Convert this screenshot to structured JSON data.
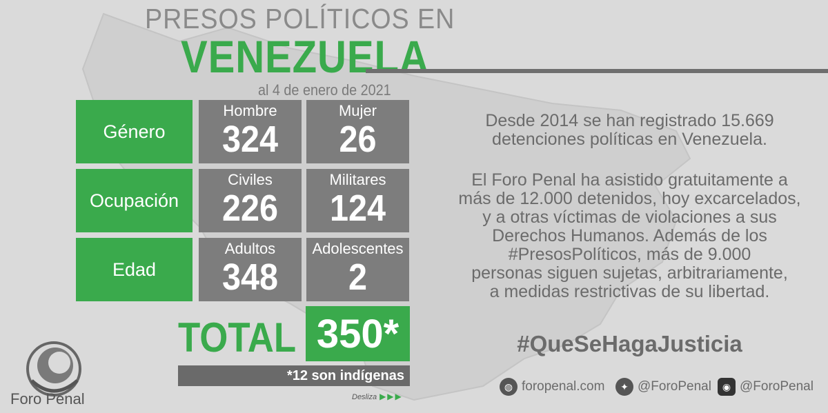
{
  "header": {
    "title_top": "PRESOS POLÍTICOS EN",
    "title_main": "VENEZUELA",
    "date": "al 4 de enero de 2021"
  },
  "rows": [
    {
      "category": "Género",
      "cells": [
        {
          "label": "Hombre",
          "value": "324"
        },
        {
          "label": "Mujer",
          "value": "26"
        }
      ]
    },
    {
      "category": "Ocupación",
      "cells": [
        {
          "label": "Civiles",
          "value": "226"
        },
        {
          "label": "Militares",
          "value": "124"
        }
      ]
    },
    {
      "category": "Edad",
      "cells": [
        {
          "label": "Adultos",
          "value": "348"
        },
        {
          "label": "Adolescentes",
          "value": "2"
        }
      ]
    }
  ],
  "total": {
    "label": "TOTAL",
    "value": "350*",
    "note": "*12 son indígenas"
  },
  "swipe": {
    "label": "Desliza",
    "arrows": "▶▶▶"
  },
  "text": {
    "para1": [
      "Desde 2014 se han registrado 15.669",
      "detenciones políticas en Venezuela."
    ],
    "para2": [
      "El Foro Penal ha asistido gratuitamente a",
      "más de 12.000 detenidos, hoy excarcelados,",
      "y a otras víctimas de violaciones a sus",
      "Derechos Humanos. Además de los",
      "#PresosPolíticos, más de 9.000",
      "personas siguen sujetas, arbitrariamente,",
      "a medidas restrictivas de su libertad."
    ],
    "hashtag": "#QueSeHagaJusticia"
  },
  "social": {
    "web": "foropenal.com",
    "twitter": "@ForoPenal",
    "instagram": "@ForoPenal"
  },
  "logo": {
    "name": "Foro Penal"
  },
  "colors": {
    "green": "#3aaa4c",
    "gray_cell": "#7d7d7d",
    "text_gray": "#6b6b6b"
  }
}
